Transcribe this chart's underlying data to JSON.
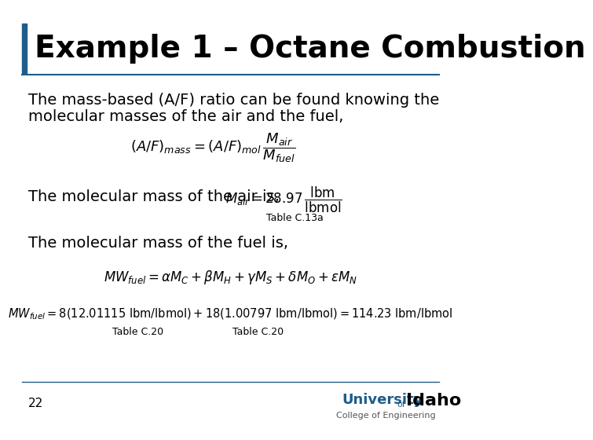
{
  "title": "Example 1 – Octane Combustion",
  "title_bar_color": "#1F5C8B",
  "title_fontsize": 28,
  "body_text1_line1": "The mass-based (A/F) ratio can be found knowing the",
  "body_text1_line2": "molecular masses of the air and the fuel,",
  "body_text2": "The molecular mass of the air is,",
  "body_text3": "The molecular mass of the fuel is,",
  "formula2_note": "Table C.13a",
  "formula4_note1": "Table C.20",
  "formula4_note2": "Table C.20",
  "page_number": "22",
  "college_text": "College of Engineering",
  "univ_color": "#1F5C8B",
  "idaho_color": "#000000",
  "college_color": "#555555",
  "separator_color": "#1F5C8B",
  "bottom_sep_color": "#1F5C8B",
  "text_color": "#000000",
  "bg_color": "#FFFFFF",
  "body_fontsize": 14,
  "small_fontsize": 9
}
